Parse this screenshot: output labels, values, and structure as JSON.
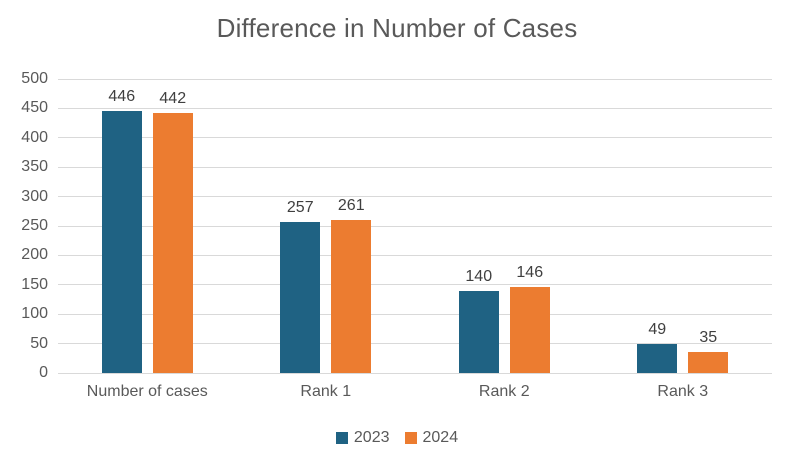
{
  "style": {
    "background": "#FFFFFF",
    "title_color": "#595959",
    "axis_text_color": "#595959",
    "data_label_color": "#3F3F3F",
    "grid_color": "#D9D9D9",
    "series_2023_color": "#1F6283",
    "series_2024_color": "#EC7C30"
  },
  "chart_data": {
    "type": "bar",
    "title": "Difference in Number of Cases",
    "categories": [
      "Number of cases",
      "Rank 1",
      "Rank 2",
      "Rank 3"
    ],
    "series": [
      {
        "name": "2023",
        "color": "#1F6283",
        "values": [
          446,
          257,
          140,
          49
        ]
      },
      {
        "name": "2024",
        "color": "#EC7C30",
        "values": [
          442,
          261,
          146,
          35
        ]
      }
    ],
    "xlabel": "",
    "ylabel": "",
    "ylim": [
      0,
      500
    ],
    "y_ticks": [
      0,
      50,
      100,
      150,
      200,
      250,
      300,
      350,
      400,
      450,
      500
    ],
    "grid": true,
    "data_labels": true,
    "legend_position": "bottom"
  }
}
